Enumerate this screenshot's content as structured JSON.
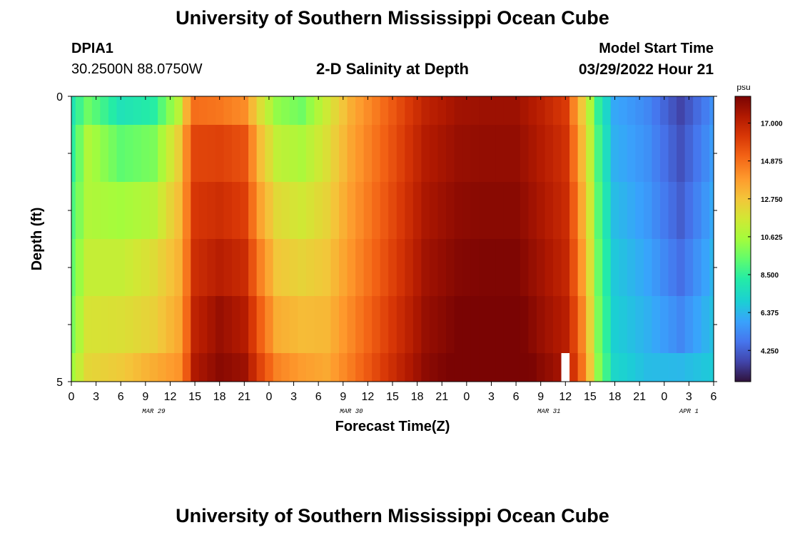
{
  "header": {
    "title": "University of Southern Mississippi Ocean Cube",
    "station_id": "DPIA1",
    "coordinates": "30.2500N  88.0750W",
    "plot_title": "2-D Salinity at Depth",
    "model_start_label": "Model Start Time",
    "model_start_value": "03/29/2022 Hour 21"
  },
  "footer": {
    "title": "University of Southern Mississippi Ocean Cube"
  },
  "chart_data": {
    "type": "heatmap",
    "title": "2-D Salinity at Depth",
    "xlabel": "Forecast Time(Z)",
    "ylabel": "Depth (ft)",
    "y_ticks": [
      "0",
      "5"
    ],
    "ylim": [
      0,
      5
    ],
    "x_tick_labels": [
      "0",
      "3",
      "6",
      "9",
      "12",
      "15",
      "18",
      "21",
      "0",
      "3",
      "6",
      "9",
      "12",
      "15",
      "18",
      "21",
      "0",
      "3",
      "6",
      "9",
      "12",
      "15",
      "18",
      "21",
      "0",
      "3",
      "6"
    ],
    "date_labels": [
      {
        "label": "MAR 29",
        "hour": 10
      },
      {
        "label": "MAR 30",
        "hour": 34
      },
      {
        "label": "MAR 31",
        "hour": 58
      },
      {
        "label": "APR 1",
        "hour": 75
      }
    ],
    "x_range_hours": [
      0,
      78
    ],
    "hour_step": 1,
    "depth_layers": 5,
    "colorbar": {
      "unit": "psu",
      "ticks": [
        "17.000",
        "14.875",
        "12.750",
        "10.625",
        "8.500",
        "6.375",
        "4.250"
      ],
      "tick_values": [
        17.0,
        14.875,
        12.75,
        10.625,
        8.5,
        6.375,
        4.25
      ],
      "range": [
        2.5,
        18.5
      ]
    },
    "key_profiles": [
      {
        "hour": 0,
        "values": [
          7.9,
          8.4,
          9.0,
          9.4,
          9.8,
          10.5
        ]
      },
      {
        "hour": 2,
        "values": [
          9.6,
          10.8,
          10.8,
          11.3,
          11.8,
          12.2
        ]
      },
      {
        "hour": 6,
        "values": [
          7.8,
          9.3,
          10.5,
          11.3,
          11.9,
          12.6
        ]
      },
      {
        "hour": 10,
        "values": [
          8.3,
          9.8,
          11.0,
          12.0,
          12.4,
          13.4
        ]
      },
      {
        "hour": 13,
        "values": [
          11.0,
          12.4,
          12.9,
          13.2,
          13.5,
          14.0
        ]
      },
      {
        "hour": 14,
        "values": [
          13.3,
          14.3,
          14.5,
          14.7,
          15.0,
          15.4
        ]
      },
      {
        "hour": 15,
        "values": [
          14.9,
          15.9,
          16.3,
          16.6,
          17.0,
          17.4
        ]
      },
      {
        "hour": 18,
        "values": [
          14.7,
          16.0,
          16.6,
          17.2,
          17.9,
          18.2
        ]
      },
      {
        "hour": 21,
        "values": [
          14.2,
          15.6,
          16.1,
          16.7,
          17.3,
          17.8
        ]
      },
      {
        "hour": 23,
        "values": [
          11.9,
          12.9,
          13.6,
          14.4,
          15.2,
          15.9
        ]
      },
      {
        "hour": 25,
        "values": [
          10.2,
          11.2,
          12.1,
          12.7,
          13.4,
          14.4
        ]
      },
      {
        "hour": 28,
        "values": [
          9.6,
          10.7,
          11.6,
          12.3,
          13.0,
          13.8
        ]
      },
      {
        "hour": 31,
        "values": [
          11.5,
          11.9,
          12.3,
          12.7,
          13.1,
          13.5
        ]
      },
      {
        "hour": 34,
        "values": [
          13.4,
          13.6,
          13.8,
          14.0,
          14.3,
          14.6
        ]
      },
      {
        "hour": 37,
        "values": [
          14.6,
          14.8,
          15.0,
          15.2,
          15.5,
          15.8
        ]
      },
      {
        "hour": 40,
        "values": [
          15.8,
          16.0,
          16.2,
          16.4,
          16.7,
          17.0
        ]
      },
      {
        "hour": 43,
        "values": [
          17.0,
          17.3,
          17.5,
          17.7,
          17.9,
          18.1
        ]
      },
      {
        "hour": 47,
        "values": [
          17.7,
          17.9,
          18.1,
          18.3,
          18.5,
          18.7
        ]
      },
      {
        "hour": 50,
        "values": [
          17.8,
          18.0,
          18.2,
          18.4,
          18.7,
          19.0
        ]
      },
      {
        "hour": 54,
        "values": [
          17.8,
          18.0,
          18.2,
          18.4,
          18.7,
          19.0
        ]
      },
      {
        "hour": 57,
        "values": [
          17.1,
          17.3,
          17.5,
          17.7,
          17.9,
          18.2
        ]
      },
      {
        "hour": 60,
        "values": [
          16.2,
          16.5,
          16.7,
          16.9,
          17.2,
          17.5
        ]
      },
      {
        "hour": 61,
        "values": [
          14.4,
          14.9,
          15.3,
          15.6,
          16.0,
          16.4
        ]
      },
      {
        "hour": 62,
        "values": [
          12.7,
          13.1,
          13.5,
          13.9,
          14.4,
          14.8
        ]
      },
      {
        "hour": 63,
        "values": [
          10.8,
          11.2,
          11.6,
          11.9,
          12.3,
          12.7
        ]
      },
      {
        "hour": 64,
        "values": [
          8.5,
          8.9,
          9.2,
          9.5,
          9.8,
          10.1
        ]
      },
      {
        "hour": 66,
        "values": [
          6.0,
          6.2,
          6.5,
          6.8,
          7.0,
          7.3
        ]
      },
      {
        "hour": 70,
        "values": [
          5.2,
          5.4,
          5.6,
          5.9,
          6.2,
          6.5
        ]
      },
      {
        "hour": 74,
        "values": [
          3.6,
          3.9,
          4.2,
          4.6,
          5.2,
          6.4
        ]
      },
      {
        "hour": 78,
        "values": [
          5.4,
          5.7,
          6.0,
          6.3,
          6.6,
          6.9
        ]
      }
    ],
    "missing_cell": {
      "hour": 60,
      "depth_index": 5
    }
  }
}
